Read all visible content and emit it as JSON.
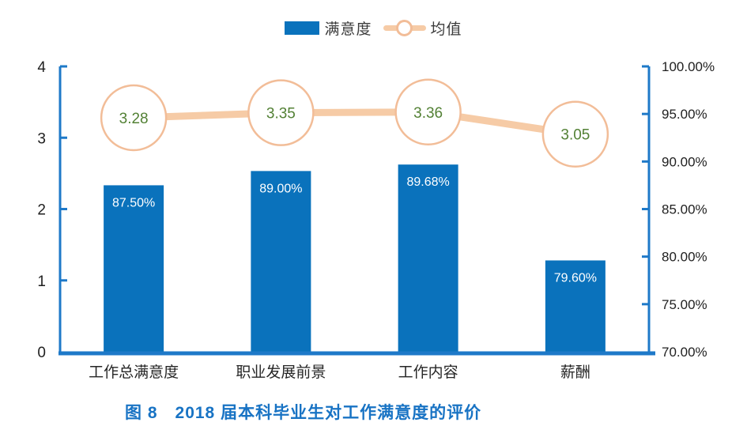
{
  "legend": {
    "items": [
      {
        "label": "满意度",
        "marker": "bar"
      },
      {
        "label": "均值",
        "marker": "line-circle"
      }
    ]
  },
  "chart_data": {
    "type": "bar+line combo",
    "categories": [
      "工作总满意度",
      "职业发展前景",
      "工作内容",
      "薪酬"
    ],
    "series": [
      {
        "name": "满意度",
        "type": "bar",
        "axis": "right",
        "values": [
          87.5,
          89.0,
          89.68,
          79.6
        ],
        "labels": [
          "87.50%",
          "89.00%",
          "89.68%",
          "79.60%"
        ]
      },
      {
        "name": "均值",
        "type": "line",
        "axis": "left",
        "values": [
          3.28,
          3.35,
          3.36,
          3.05
        ],
        "labels": [
          "3.28",
          "3.35",
          "3.36",
          "3.05"
        ]
      }
    ],
    "left_axis": {
      "min": 0,
      "max": 4,
      "ticks": [
        "0",
        "1",
        "2",
        "3",
        "4"
      ],
      "tick_values": [
        0,
        1,
        2,
        3,
        4
      ]
    },
    "right_axis": {
      "min": 70,
      "max": 100,
      "ticks": [
        "70.00%",
        "75.00%",
        "80.00%",
        "85.00%",
        "90.00%",
        "95.00%",
        "100.00%"
      ],
      "tick_values": [
        70,
        75,
        80,
        85,
        90,
        95,
        100
      ]
    },
    "grid": false,
    "legend_position": "top-center"
  },
  "colors": {
    "bar": "#0A72BC",
    "axis": "#1E79C8",
    "line": "#F6CBA6",
    "marker_border": "#F2BD98",
    "marker_fill": "#FFFFFF",
    "mean_label": "#538135",
    "bar_label": "#FFFFFF",
    "tick_label": "#1F1F1F",
    "category_label": "#262626",
    "title": "#1873C4",
    "legend_text": "#3B3B3B"
  },
  "title": {
    "text": "图 8　2018 届本科毕业生对工作满意度的评价"
  }
}
